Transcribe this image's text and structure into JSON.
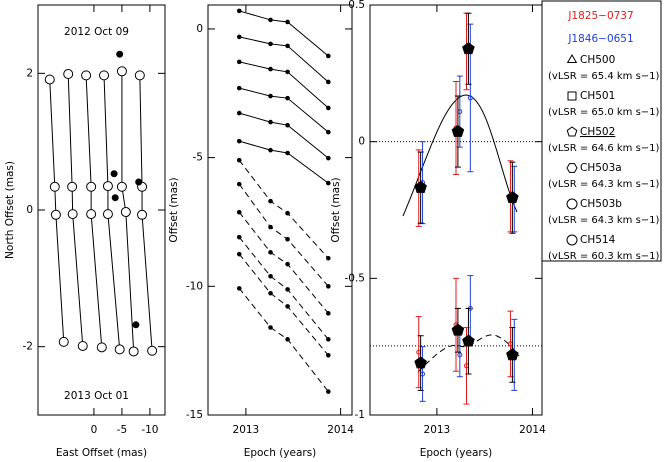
{
  "chart_data": [
    {
      "type": "scatter",
      "xlabel": "East Offset (mas)",
      "ylabel": "North Offset (mas)",
      "xlim": [
        10,
        -12.7
      ],
      "ylim": [
        -3,
        3
      ],
      "xticks": [
        0,
        -5,
        -10
      ],
      "yticks": [
        2,
        0,
        -2
      ],
      "annotations": [
        "2012 Oct 09",
        "2013 Oct 01"
      ],
      "series": [
        {
          "marker": "open",
          "line": true,
          "x": [
            7.9,
            7.0,
            6.8,
            5.4
          ],
          "y": [
            1.91,
            0.34,
            -0.07,
            -1.93
          ]
        },
        {
          "marker": "open",
          "line": true,
          "x": [
            4.6,
            3.9,
            3.8,
            2.0
          ],
          "y": [
            1.99,
            0.34,
            -0.06,
            -1.99
          ]
        },
        {
          "marker": "open",
          "line": true,
          "x": [
            1.4,
            0.5,
            0.5,
            -1.4
          ],
          "y": [
            1.97,
            0.34,
            -0.06,
            -2.01
          ]
        },
        {
          "marker": "open",
          "line": true,
          "x": [
            -1.8,
            -2.5,
            -2.5,
            -4.6
          ],
          "y": [
            1.97,
            0.35,
            -0.06,
            -2.04
          ]
        },
        {
          "marker": "open",
          "line": true,
          "x": [
            -5.0,
            -5.0,
            -5.7,
            -7.1
          ],
          "y": [
            2.03,
            0.34,
            -0.03,
            -2.07
          ]
        },
        {
          "marker": "open",
          "line": true,
          "x": [
            -8.2,
            -8.6,
            -8.6,
            -10.4
          ],
          "y": [
            1.97,
            0.34,
            -0.07,
            -2.06
          ]
        },
        {
          "marker": "filled",
          "line": false,
          "x": [
            -4.6,
            -3.6,
            -3.8,
            -7.5,
            -8.0
          ],
          "y": [
            2.28,
            0.53,
            0.18,
            -1.68,
            0.41
          ]
        }
      ]
    },
    {
      "type": "line",
      "xlabel": "Epoch (years)",
      "ylabel": "Offset (mas)",
      "xlim": [
        2012.6,
        2014.12
      ],
      "ylim": [
        -15,
        0.93
      ],
      "xticks": [
        2013,
        2014
      ],
      "yticks": [
        0,
        -5,
        -10,
        -15
      ],
      "x": [
        2012.93,
        2013.26,
        2013.44,
        2013.87
      ],
      "series": [
        {
          "dash": false,
          "values": [
            0.7,
            0.35,
            0.27,
            -1.05
          ]
        },
        {
          "dash": false,
          "values": [
            -0.31,
            -0.58,
            -0.66,
            -2.06
          ]
        },
        {
          "dash": false,
          "values": [
            -1.28,
            -1.56,
            -1.67,
            -3.07
          ]
        },
        {
          "dash": false,
          "values": [
            -2.3,
            -2.61,
            -2.69,
            -4.01
          ]
        },
        {
          "dash": false,
          "values": [
            -3.27,
            -3.62,
            -3.74,
            -5.02
          ]
        },
        {
          "dash": false,
          "values": [
            -4.36,
            -4.71,
            -4.82,
            -5.99
          ]
        },
        {
          "dash": true,
          "values": [
            -5.1,
            -6.69,
            -7.16,
            -8.91
          ]
        },
        {
          "dash": true,
          "values": [
            -6.03,
            -7.7,
            -8.17,
            -10.0
          ]
        },
        {
          "dash": true,
          "values": [
            -7.12,
            -8.68,
            -9.14,
            -11.05
          ]
        },
        {
          "dash": true,
          "values": [
            -8.09,
            -9.61,
            -10.12,
            -12.06
          ]
        },
        {
          "dash": true,
          "values": [
            -8.75,
            -10.27,
            -10.78,
            -12.68
          ]
        },
        {
          "dash": true,
          "values": [
            -10.08,
            -11.6,
            -12.06,
            -14.09
          ]
        }
      ]
    },
    {
      "type": "errorbar",
      "xlabel": "Epoch (years)",
      "ylabel": "Offset (mas)",
      "xlim": [
        2012.3,
        2014.1
      ],
      "ylim": [
        -1,
        0.5
      ],
      "xticks": [
        2013,
        2014
      ],
      "yticks": [
        0.5,
        0,
        -0.5,
        -1
      ],
      "reference_lines": [
        0,
        -0.747
      ],
      "series": [
        {
          "color": "#e41a1c",
          "marker": "circle",
          "x": [
            2012.81,
            2013.2,
            2013.31,
            2013.77
          ],
          "values": [
            -0.17,
            0.05,
            0.33,
            -0.2
          ],
          "errors": [
            0.14,
            0.17,
            0.14,
            0.13
          ]
        },
        {
          "color": "#1f3fe0",
          "marker": "circle",
          "x": [
            2012.85,
            2013.24,
            2013.35,
            2013.81
          ],
          "values": [
            -0.15,
            0.11,
            0.16,
            -0.21
          ],
          "errors": [
            0.15,
            0.13,
            0.27,
            0.12
          ]
        },
        {
          "color": "#e41a1c",
          "marker": "circle",
          "x": [
            2012.81,
            2013.2,
            2013.31,
            2013.77
          ],
          "values": [
            -0.77,
            -0.67,
            -0.82,
            -0.74
          ],
          "errors": [
            0.13,
            0.17,
            0.14,
            0.12
          ]
        },
        {
          "color": "#1f3fe0",
          "marker": "circle",
          "x": [
            2012.85,
            2013.24,
            2013.35,
            2013.81
          ],
          "values": [
            -0.85,
            -0.78,
            -0.61,
            -0.78
          ],
          "errors": [
            0.1,
            0.08,
            0.12,
            0.13
          ]
        },
        {
          "color": "#000000",
          "marker": "pentagon",
          "x": [
            2012.83,
            2013.22,
            2013.33,
            2013.79
          ],
          "values": [
            -0.168,
            0.037,
            0.34,
            -0.205
          ],
          "errors": [
            0.13,
            0.13,
            0.13,
            0.13
          ]
        },
        {
          "color": "#000000",
          "marker": "pentagon",
          "x": [
            2012.83,
            2013.22,
            2013.33,
            2013.79
          ],
          "values": [
            -0.81,
            -0.69,
            -0.73,
            -0.78
          ],
          "errors": [
            0.1,
            0.08,
            0.12,
            0.1
          ]
        }
      ],
      "legend": {
        "sources": [
          {
            "name": "J1825−0737",
            "color": "#e41a1c"
          },
          {
            "name": "J1846−0651",
            "color": "#1f3fe0"
          }
        ],
        "entries": [
          {
            "name": "CH500",
            "marker": "triangle",
            "underline": false,
            "note": "(vLSR = 65.4 km s−1)"
          },
          {
            "name": "CH501",
            "marker": "square",
            "underline": false,
            "note": "(vLSR = 65.0 km s−1)"
          },
          {
            "name": "CH502",
            "marker": "pentagon",
            "underline": true,
            "note": "(vLSR = 64.6 km s−1)"
          },
          {
            "name": "CH503a",
            "marker": "hexagon",
            "underline": false,
            "note": "(vLSR = 64.3 km s−1)"
          },
          {
            "name": "CH503b",
            "marker": "circle",
            "underline": false,
            "note": "(vLSR = 64.3 km s−1)"
          },
          {
            "name": "CH514",
            "marker": "circle",
            "underline": false,
            "note": "(vLSR = 60.3 km s−1)"
          }
        ]
      }
    }
  ]
}
